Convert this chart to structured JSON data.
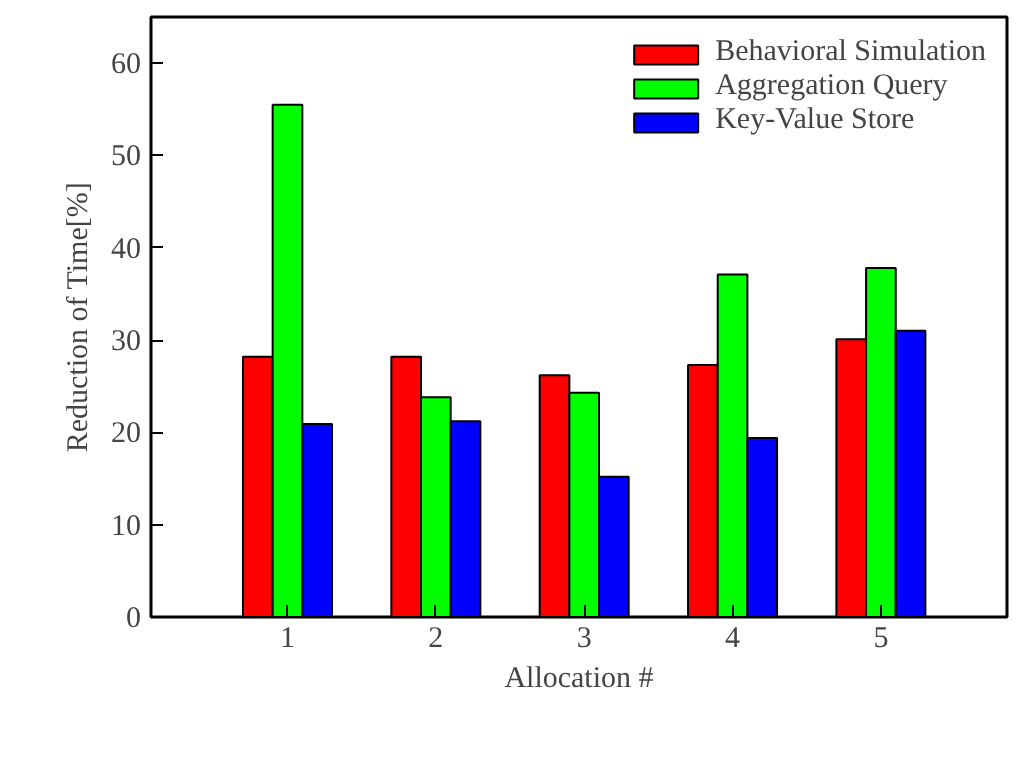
{
  "chart_data": {
    "type": "bar",
    "xlabel": "Allocation #",
    "ylabel": "Reduction of Time[%]",
    "categories": [
      "1",
      "2",
      "3",
      "4",
      "5"
    ],
    "series": [
      {
        "name": "Behavioral Simulation",
        "color": "#ff0000",
        "values": [
          28.2,
          28.2,
          26.2,
          27.3,
          30.1
        ]
      },
      {
        "name": "Aggregation Query",
        "color": "#00ff00",
        "values": [
          55.5,
          23.8,
          24.3,
          37.1,
          37.8
        ]
      },
      {
        "name": "Key-Value Store",
        "color": "#0000ff",
        "values": [
          20.9,
          21.2,
          15.2,
          19.4,
          31.0
        ]
      }
    ],
    "ylim": [
      0,
      65
    ],
    "yticks": [
      0,
      10,
      20,
      30,
      40,
      50,
      60
    ],
    "grid": false,
    "legend": "top right"
  }
}
